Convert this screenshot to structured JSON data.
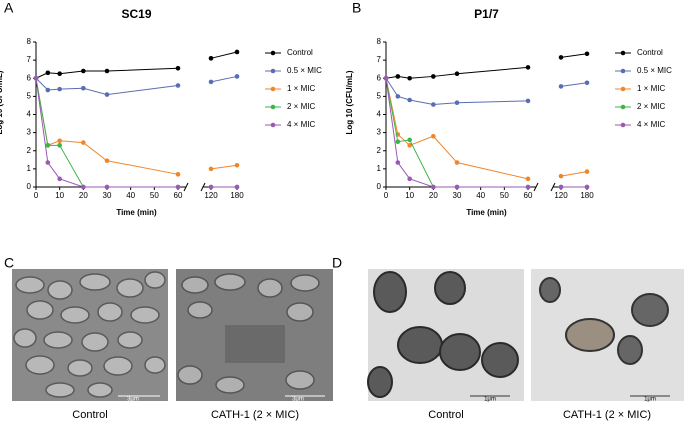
{
  "chart_data": [
    {
      "type": "line",
      "title": "SC19",
      "xlabel": "Time (min)",
      "ylabel": "Log 10 (CFU/mL)",
      "x": [
        0,
        5,
        10,
        20,
        30,
        60,
        120,
        180
      ],
      "xlim": [
        0,
        180
      ],
      "xbreak": [
        60,
        120
      ],
      "xticks": [
        0,
        10,
        20,
        30,
        40,
        50,
        60,
        120,
        180
      ],
      "ylim": [
        0,
        8
      ],
      "yticks": [
        0,
        1,
        2,
        3,
        4,
        5,
        6,
        7,
        8
      ],
      "series": [
        {
          "name": "Control",
          "color": "#000000",
          "values": [
            6.0,
            6.3,
            6.25,
            6.4,
            6.4,
            6.55,
            7.1,
            7.45
          ]
        },
        {
          "name": "0.5 × MIC",
          "color": "#5a6db4",
          "values": [
            6.0,
            5.35,
            5.4,
            5.45,
            5.1,
            5.6,
            5.8,
            6.1
          ]
        },
        {
          "name": "1 × MIC",
          "color": "#f0862a",
          "values": [
            6.0,
            2.3,
            2.55,
            2.45,
            1.45,
            0.7,
            1.0,
            1.2
          ]
        },
        {
          "name": "2 × MIC",
          "color": "#3cb44b",
          "values": [
            6.0,
            2.3,
            2.3,
            0,
            0,
            0,
            0,
            0
          ]
        },
        {
          "name": "4 × MIC",
          "color": "#9b59b6",
          "values": [
            6.0,
            1.35,
            0.45,
            0,
            0,
            0,
            0,
            0
          ]
        }
      ]
    },
    {
      "type": "line",
      "title": "P1/7",
      "xlabel": "Time (min)",
      "ylabel": "Log 10 (CFU/mL)",
      "x": [
        0,
        5,
        10,
        20,
        30,
        60,
        120,
        180
      ],
      "xlim": [
        0,
        180
      ],
      "xbreak": [
        60,
        120
      ],
      "xticks": [
        0,
        10,
        20,
        30,
        40,
        50,
        60,
        120,
        180
      ],
      "ylim": [
        0,
        8
      ],
      "yticks": [
        0,
        1,
        2,
        3,
        4,
        5,
        6,
        7,
        8
      ],
      "series": [
        {
          "name": "Control",
          "color": "#000000",
          "values": [
            6.0,
            6.1,
            6.0,
            6.1,
            6.25,
            6.6,
            7.15,
            7.35
          ]
        },
        {
          "name": "0.5 × MIC",
          "color": "#5a6db4",
          "values": [
            6.0,
            5.0,
            4.8,
            4.55,
            4.65,
            4.75,
            5.55,
            5.75
          ]
        },
        {
          "name": "1 × MIC",
          "color": "#f0862a",
          "values": [
            6.0,
            2.9,
            2.3,
            2.8,
            1.35,
            0.45,
            0.6,
            0.85
          ]
        },
        {
          "name": "2 × MIC",
          "color": "#3cb44b",
          "values": [
            6.0,
            2.5,
            2.6,
            0,
            0,
            0,
            0,
            0
          ]
        },
        {
          "name": "4 × MIC",
          "color": "#9b59b6",
          "values": [
            6.0,
            1.35,
            0.45,
            0,
            0,
            0,
            0,
            0
          ]
        }
      ]
    }
  ],
  "panel_labels": [
    "A",
    "B",
    "C",
    "D"
  ],
  "micrographs": [
    {
      "caption": "Control",
      "scale_bar": "3μm"
    },
    {
      "caption": "CATH-1 (2 × MIC)",
      "scale_bar": "3μm"
    },
    {
      "caption": "Control",
      "scale_bar": "1μm"
    },
    {
      "caption": "CATH-1 (2 × MIC)",
      "scale_bar": "1μm"
    }
  ]
}
